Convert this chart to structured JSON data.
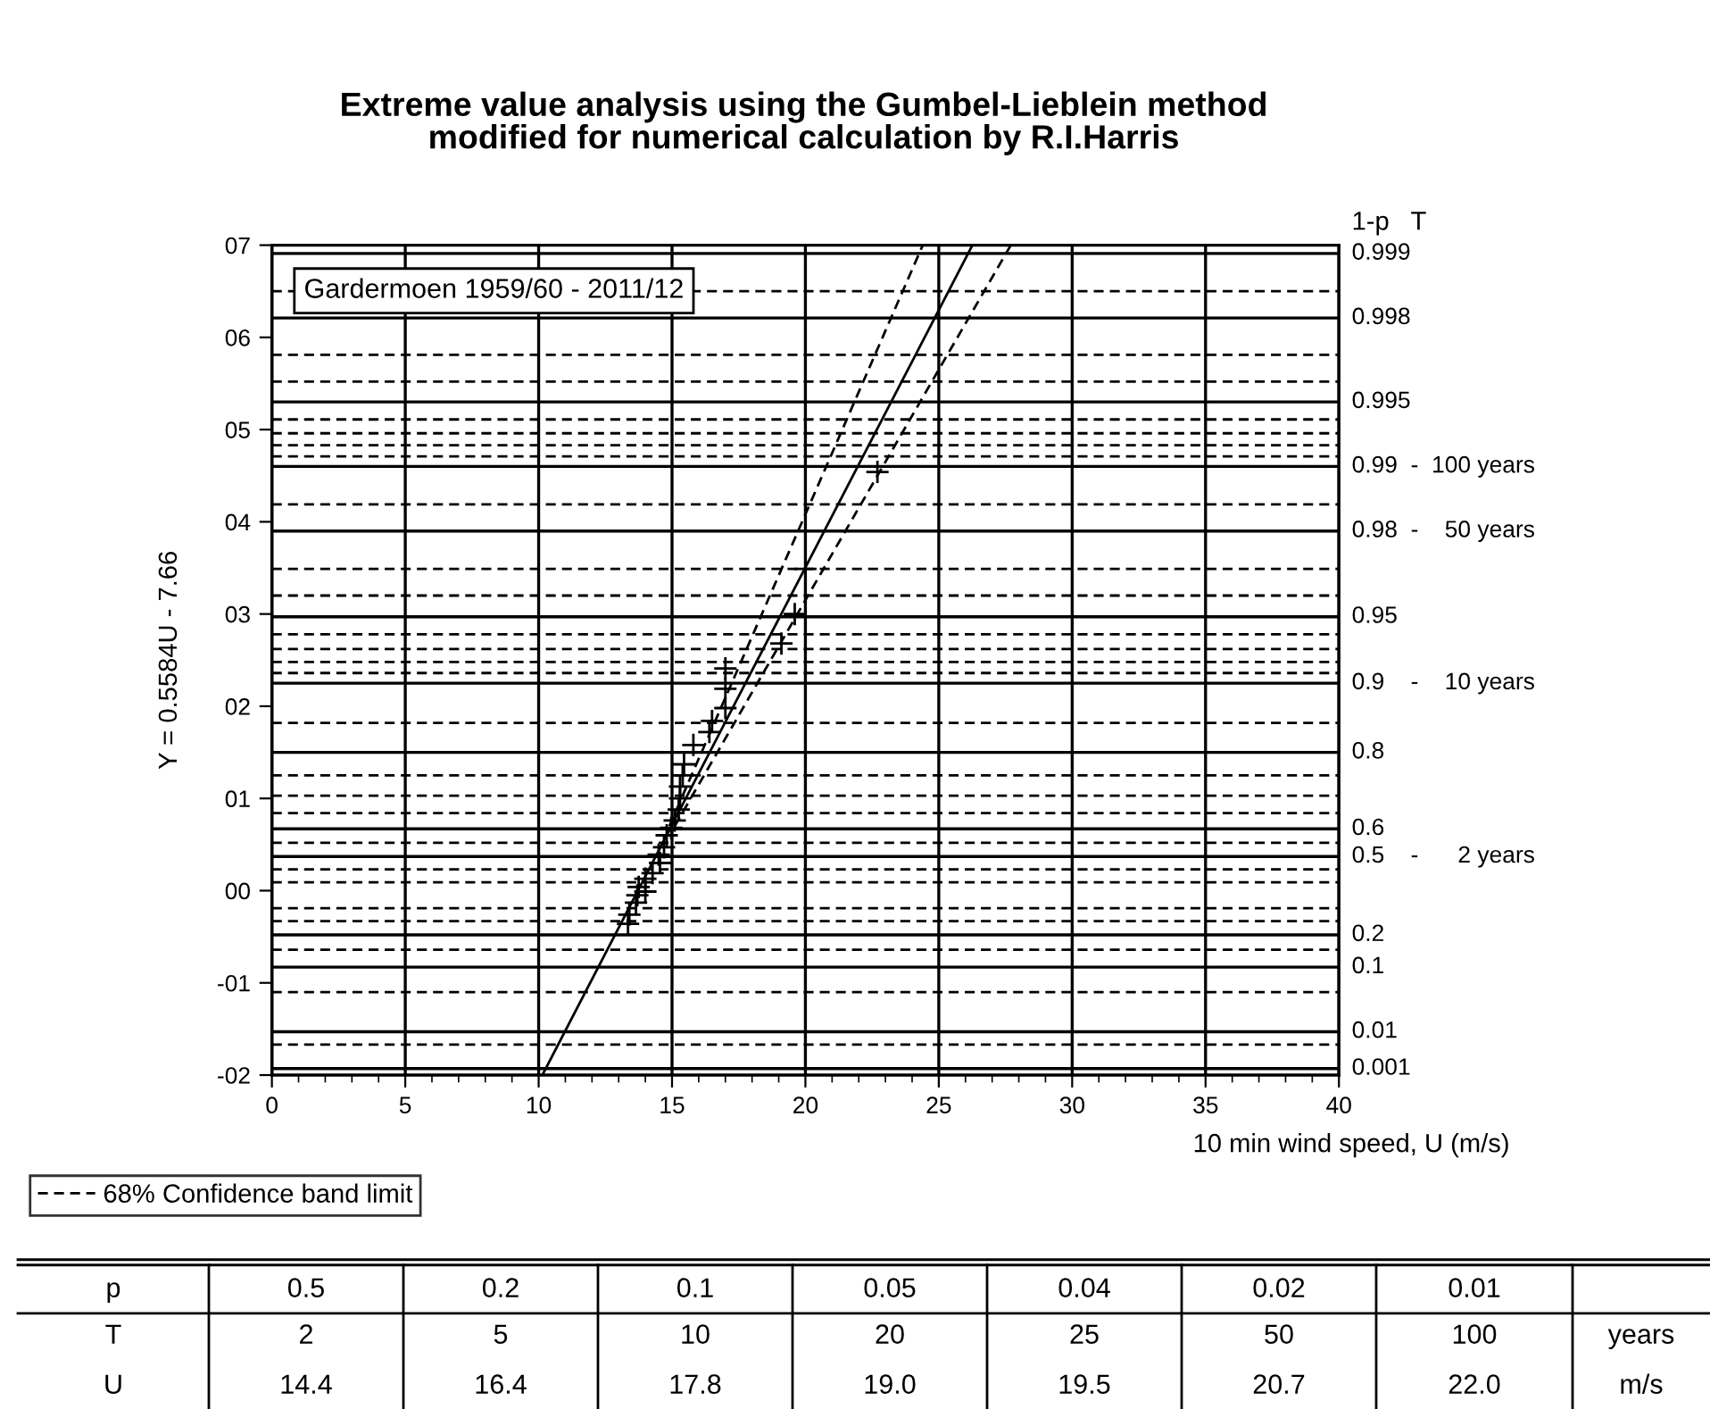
{
  "chart_data": {
    "type": "scatter",
    "title": "Extreme value analysis using the Gumbel-Lieblein method\nmodified for numerical calculation by R.I.Harris",
    "xlabel": "10 min wind speed, U (m/s)",
    "ylabel": "Y = 0.5584U - 7.66",
    "xlim": [
      0,
      40
    ],
    "xticks": [
      0,
      5,
      10,
      15,
      20,
      25,
      30,
      35,
      40
    ],
    "ylim": [
      -2,
      7
    ],
    "yticks": [
      {
        "value": -2,
        "label": "-02"
      },
      {
        "value": -1,
        "label": "-01"
      },
      {
        "value": 0,
        "label": "00"
      },
      {
        "value": 1,
        "label": "01"
      },
      {
        "value": 2,
        "label": "02"
      },
      {
        "value": 3,
        "label": "03"
      },
      {
        "value": 4,
        "label": "04"
      },
      {
        "value": 5,
        "label": "05"
      },
      {
        "value": 6,
        "label": "06"
      },
      {
        "value": 7,
        "label": "07"
      }
    ],
    "grid": "x",
    "legend": "bottom left",
    "series": [
      {
        "marker": "cross",
        "color": "#000000",
        "x": [
          22.7,
          20.0,
          19.6,
          19.1,
          17.0,
          17.0,
          17.0,
          16.5,
          16.4,
          15.8,
          15.45,
          15.4,
          15.3,
          15.3,
          15.25,
          15.1,
          14.97,
          14.8,
          14.7,
          14.5,
          14.55,
          14.27,
          14.0,
          13.75,
          14.0,
          13.7,
          13.65,
          13.4,
          13.35
        ],
        "values": [
          4.54,
          3.49,
          3.0,
          2.68,
          2.41,
          2.19,
          1.98,
          1.84,
          1.72,
          1.58,
          1.37,
          1.25,
          1.13,
          1.0,
          0.88,
          0.76,
          0.68,
          0.6,
          0.47,
          0.39,
          0.3,
          0.19,
          0.13,
          0.04,
          -0.01,
          -0.05,
          -0.13,
          -0.26,
          -0.36
        ]
      },
      {
        "type": "line",
        "line_style": "solid",
        "color": "#000000",
        "x": [
          10.14,
          26.26
        ],
        "values": [
          -2.0,
          7.0
        ]
      },
      {
        "type": "line",
        "line_style": "dashed",
        "name": "68% Confidence band limit",
        "color": "#000000",
        "x": [
          14.9,
          24.4
        ],
        "values": [
          0.7,
          7.0
        ]
      },
      {
        "type": "line",
        "line_style": "dashed",
        "color": "#000000",
        "x": [
          15.1,
          27.7
        ],
        "values": [
          0.7,
          7.0
        ]
      }
    ],
    "ref_lines": [
      {
        "axis": "y",
        "value": 6.91,
        "line_style": "solid"
      },
      {
        "axis": "y",
        "value": 6.21,
        "line_style": "solid"
      },
      {
        "axis": "y",
        "value": 5.3,
        "line_style": "solid"
      },
      {
        "axis": "y",
        "value": 4.6,
        "line_style": "solid"
      },
      {
        "axis": "y",
        "value": 3.9,
        "line_style": "solid"
      },
      {
        "axis": "y",
        "value": 2.97,
        "line_style": "solid"
      },
      {
        "axis": "y",
        "value": 2.25,
        "line_style": "solid"
      },
      {
        "axis": "y",
        "value": 1.5,
        "line_style": "solid"
      },
      {
        "axis": "y",
        "value": 0.67,
        "line_style": "solid"
      },
      {
        "axis": "y",
        "value": 0.37,
        "line_style": "solid"
      },
      {
        "axis": "y",
        "value": -0.48,
        "line_style": "solid"
      },
      {
        "axis": "y",
        "value": -0.83,
        "line_style": "solid"
      },
      {
        "axis": "y",
        "value": -1.53,
        "line_style": "solid"
      },
      {
        "axis": "y",
        "value": -1.93,
        "line_style": "solid"
      },
      {
        "axis": "y",
        "value": 6.5,
        "line_style": "dashed"
      },
      {
        "axis": "y",
        "value": 5.81,
        "line_style": "dashed"
      },
      {
        "axis": "y",
        "value": 5.52,
        "line_style": "dashed"
      },
      {
        "axis": "y",
        "value": 5.11,
        "line_style": "dashed"
      },
      {
        "axis": "y",
        "value": 4.96,
        "line_style": "dashed"
      },
      {
        "axis": "y",
        "value": 4.83,
        "line_style": "dashed"
      },
      {
        "axis": "y",
        "value": 4.71,
        "line_style": "dashed"
      },
      {
        "axis": "y",
        "value": 4.19,
        "line_style": "dashed"
      },
      {
        "axis": "y",
        "value": 3.49,
        "line_style": "dashed"
      },
      {
        "axis": "y",
        "value": 3.2,
        "line_style": "dashed"
      },
      {
        "axis": "y",
        "value": 2.78,
        "line_style": "dashed"
      },
      {
        "axis": "y",
        "value": 2.62,
        "line_style": "dashed"
      },
      {
        "axis": "y",
        "value": 2.48,
        "line_style": "dashed"
      },
      {
        "axis": "y",
        "value": 2.36,
        "line_style": "dashed"
      },
      {
        "axis": "y",
        "value": 1.82,
        "line_style": "dashed"
      },
      {
        "axis": "y",
        "value": 1.25,
        "line_style": "dashed"
      },
      {
        "axis": "y",
        "value": 1.03,
        "line_style": "dashed"
      },
      {
        "axis": "y",
        "value": 0.84,
        "line_style": "dashed"
      },
      {
        "axis": "y",
        "value": 0.52,
        "line_style": "dashed"
      },
      {
        "axis": "y",
        "value": 0.23,
        "line_style": "dashed"
      },
      {
        "axis": "y",
        "value": 0.09,
        "line_style": "dashed"
      },
      {
        "axis": "y",
        "value": -0.19,
        "line_style": "dashed"
      },
      {
        "axis": "y",
        "value": -0.33,
        "line_style": "dashed"
      },
      {
        "axis": "y",
        "value": -0.64,
        "line_style": "dashed"
      },
      {
        "axis": "y",
        "value": -1.1,
        "line_style": "dashed"
      },
      {
        "axis": "y",
        "value": -1.67,
        "line_style": "dashed"
      }
    ],
    "annotations": [
      "Gardermoen 1959/60 - 2011/12",
      "1-p   T",
      "0.999",
      "0.998",
      "0.995",
      "0.99  -  100 years",
      "0.98  -    50 years",
      "0.95",
      "0.9    -    10 years",
      "0.8",
      "0.6",
      "0.5    -      2 years",
      "0.2",
      "0.1",
      "0.01",
      "0.001",
      "p",
      "0.5",
      "0.2",
      "0.1",
      "0.05",
      "0.04",
      "0.02",
      "0.01",
      "T",
      "2",
      "5",
      "10",
      "20",
      "25",
      "50",
      "100",
      "years",
      "U",
      "14.4",
      "16.4",
      "17.8",
      "19.0",
      "19.5",
      "20.7",
      "22.0",
      "m/s"
    ]
  }
}
